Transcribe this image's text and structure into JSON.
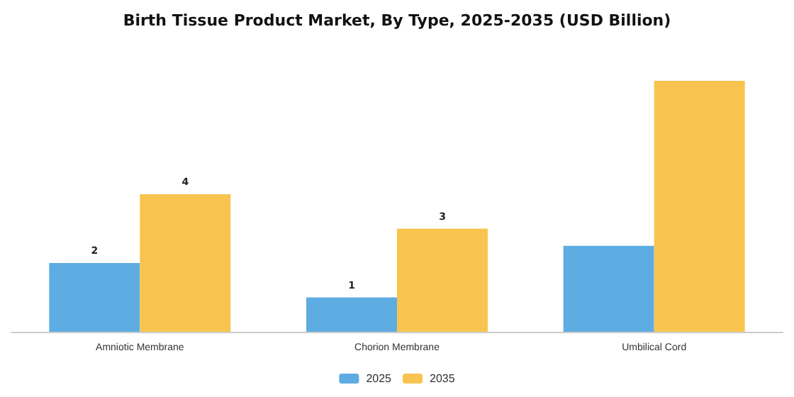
{
  "chart_data": {
    "type": "bar",
    "title": "Birth Tissue Product Market, By Type, 2025-2035 (USD Billion)",
    "categories": [
      "Amniotic Membrane",
      "Chorion Membrane",
      "Umbilical Cord"
    ],
    "series": [
      {
        "name": "2025",
        "color": "#5dade2",
        "values": [
          2,
          1,
          2.5
        ],
        "value_labels": [
          "2",
          "1",
          null
        ]
      },
      {
        "name": "2035",
        "color": "#f8c44f",
        "values": [
          4,
          3,
          7.3
        ],
        "value_labels": [
          "4",
          "3",
          null
        ]
      }
    ],
    "legend": "bottom"
  }
}
